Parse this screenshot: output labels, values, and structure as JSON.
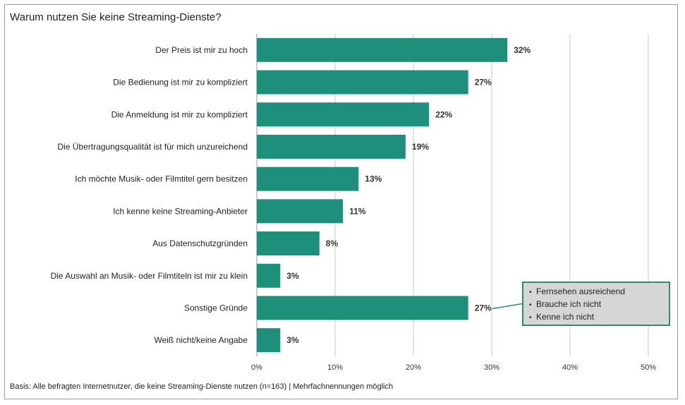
{
  "chart_data": {
    "type": "bar",
    "orientation": "horizontal",
    "title": "Warum nutzen Sie keine Streaming-Dienste?",
    "categories": [
      "Der Preis ist mir zu hoch",
      "Die Bedienung ist mir zu kompliziert",
      "Die Anmeldung ist mir zu kompliziert",
      "Die Übertragungsqualität ist für mich unzureichend",
      "Ich möchte Musik- oder Filmtitel gern besitzen",
      "Ich kenne keine Streaming-Anbieter",
      "Aus Datenschutzgründen",
      "Die Auswahl an Musik- oder Filmtiteln ist mir zu klein",
      "Sonstige Gründe",
      "Weiß nicht/keine Angabe"
    ],
    "values": [
      32,
      27,
      22,
      19,
      13,
      11,
      8,
      3,
      27,
      3
    ],
    "value_labels": [
      "32%",
      "27%",
      "22%",
      "19%",
      "13%",
      "11%",
      "8%",
      "3%",
      "27%",
      "3%"
    ],
    "xlim": [
      0,
      50
    ],
    "xticks": [
      0,
      10,
      20,
      30,
      40,
      50
    ],
    "xtick_labels": [
      "0%",
      "10%",
      "20%",
      "30%",
      "40%",
      "50%"
    ],
    "grid": "vertical",
    "bar_color": "#1e8f7a",
    "annotation": {
      "attached_to": "Sonstige Gründe",
      "items": [
        "Fernsehen ausreichend",
        "Brauche ich nicht",
        "Kenne ich nicht"
      ]
    }
  },
  "footnote": "Basis: Alle befragten Internetnutzer, die keine Streaming-Dienste nutzen (n=163) | Mehrfachnennungen möglich"
}
